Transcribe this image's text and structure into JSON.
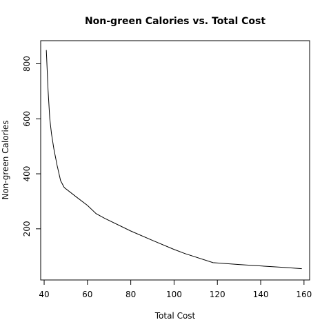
{
  "chart_data": {
    "type": "line",
    "title": "Non-green Calories vs. Total Cost",
    "xlabel": "Total Cost",
    "ylabel": "Non-green Calories",
    "xlim": [
      38.4,
      162.6
    ],
    "ylim": [
      14,
      884
    ],
    "xticks": [
      40,
      60,
      80,
      100,
      120,
      140,
      160
    ],
    "yticks": [
      200,
      400,
      600,
      800
    ],
    "grid": false,
    "line_color": "#000000",
    "series": [
      {
        "x": [
          41.0,
          41.8,
          42.6,
          43.4,
          44.5,
          46.0,
          47.6,
          49.3,
          55.0,
          60.0,
          64.0,
          68.0,
          80.0,
          90.0,
          100.0,
          105.0,
          118.0,
          130.0,
          140.0,
          150.0,
          159.0
        ],
        "y": [
          850,
          705,
          600,
          545,
          490,
          430,
          375,
          350,
          315,
          285,
          255,
          238,
          192,
          158,
          125,
          110,
          77,
          70,
          65,
          60,
          55
        ]
      }
    ]
  }
}
